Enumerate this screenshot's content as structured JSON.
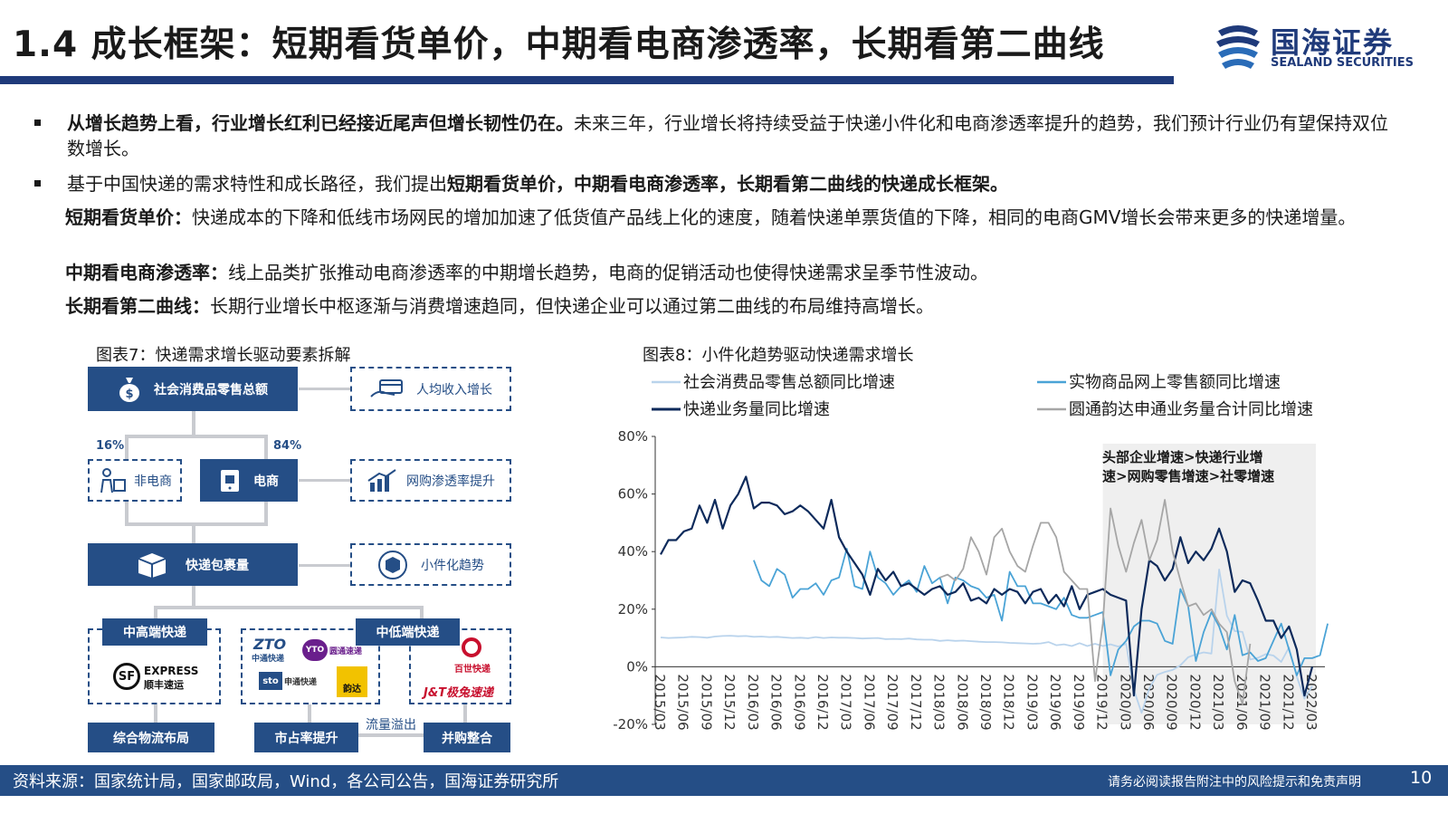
{
  "header": {
    "title": "1.4 成长框架：短期看货单价，中期看电商渗透率，长期看第二曲线",
    "logo_cn": "国海证券",
    "logo_en": "SEALAND SECURITIES"
  },
  "bullets": [
    {
      "bold": "从增长趋势上看，行业增长红利已经接近尾声但增长韧性仍在。",
      "text": "未来三年，行业增长将持续受益于快递小件化和电商渗透率提升的趋势，我们预计行业仍有望保持双位数增长。"
    },
    {
      "text": "基于中国快递的需求特性和成长路径，我们提出",
      "bold": "短期看货单价，中期看电商渗透率，长期看第二曲线的快递成长框架。"
    }
  ],
  "subpoints": [
    {
      "bold": "短期看货单价：",
      "text": "快递成本的下降和低线市场网民的增加加速了低货值产品线上化的速度，随着快递单票货值的下降，相同的电商GMV增长会带来更多的快递增量。"
    },
    {
      "bold": "中期看电商渗透率：",
      "text": "线上品类扩张推动电商渗透率的中期增长趋势，电商的促销活动也使得快递需求呈季节性波动。"
    },
    {
      "bold": "长期看第二曲线：",
      "text": "长期行业增长中枢逐渐与消费增速趋同，但快递企业可以通过第二曲线的布局维持高增长。"
    }
  ],
  "diagram": {
    "title": "图表7：快递需求增长驱动要素拆解",
    "retail_total": "社会消费品零售总额",
    "income": "人均收入增长",
    "non_ecommerce": "非电商",
    "ecommerce": "电商",
    "pct_non_ecommerce": "16%",
    "pct_ecommerce": "84%",
    "penetration": "网购渗透率提升",
    "parcel_volume": "快递包裹量",
    "small_parcel": "小件化趋势",
    "high_end": "中高端快递",
    "mid_low_end": "中低端快递",
    "integrated": "综合物流布局",
    "market_share": "市占率提升",
    "overflow": "流量溢出",
    "mna": "并购整合",
    "brands": {
      "sf": "EXPRESS",
      "sf_cn": "顺丰速运",
      "zto": "中通快递",
      "yto": "圆通速递",
      "sto": "申通快递",
      "yunda": "韵达",
      "best": "百世快递",
      "jt": "J&T极兔速递"
    }
  },
  "chart_data": {
    "title": "图表8：小件化趋势驱动快递需求增长",
    "type": "line",
    "ylim": [
      -20,
      80
    ],
    "yticks": [
      "80%",
      "60%",
      "40%",
      "20%",
      "0%",
      "-20%"
    ],
    "xticks": [
      "2015/03",
      "2015/06",
      "2015/09",
      "2015/12",
      "2016/03",
      "2016/06",
      "2016/09",
      "2016/12",
      "2017/03",
      "2017/06",
      "2017/09",
      "2017/12",
      "2018/03",
      "2018/06",
      "2018/09",
      "2018/12",
      "2019/03",
      "2019/06",
      "2019/09",
      "2019/12",
      "2020/03",
      "2020/06",
      "2020/09",
      "2020/12",
      "2021/03",
      "2021/06",
      "2021/09",
      "2021/12",
      "2022/03"
    ],
    "annotation": [
      "头部企业增速>快递行业增",
      "速>网购零售增速>社零增速"
    ],
    "shaded_range": [
      "2019/12",
      "2022/03"
    ],
    "series": [
      {
        "name": "社会消费品零售总额同比增速",
        "color": "#b9d3ec",
        "start": "2015/03",
        "values": [
          10.2,
          10.0,
          10.1,
          10.2,
          10.4,
          10.3,
          10.1,
          10.5,
          10.7,
          10.8,
          10.6,
          10.7,
          10.4,
          10.5,
          10.3,
          10.4,
          10.2,
          10.0,
          10.1,
          9.9,
          10.3,
          10.0,
          10.2,
          10.1,
          10.1,
          10.0,
          9.8,
          9.9,
          10.0,
          9.6,
          9.7,
          9.6,
          9.8,
          9.5,
          9.4,
          9.4,
          9.0,
          9.2,
          9.0,
          9.1,
          8.9,
          8.7,
          8.6,
          8.6,
          8.5,
          8.3,
          8.2,
          8.1,
          8.0,
          8.1,
          8.6,
          7.5,
          7.8,
          7.2,
          8.2,
          7.2,
          8.0,
          7.2,
          7.8,
          7.0,
          8.0,
          -8.0,
          -16.0,
          -7.5,
          -2.8,
          -1.8,
          -1.1,
          0.5,
          3.3,
          4.3,
          5.0,
          4.6,
          33.8,
          17.7,
          12.4,
          12.1,
          2.5,
          3.1,
          4.4,
          3.9,
          1.7,
          6.7,
          -3.5,
          -11.1,
          -6.7
        ]
      },
      {
        "name": "实物商品网上零售额同比增速",
        "color": "#4aa3d6",
        "start": "2016/03",
        "values": [
          37.0,
          30.0,
          28.0,
          34.0,
          32.0,
          24.0,
          27.0,
          27.0,
          29.0,
          25.0,
          30.0,
          31.0,
          41.0,
          28.0,
          27.0,
          40.0,
          31.0,
          29.0,
          25.0,
          28.0,
          30.0,
          26.0,
          35.0,
          29.0,
          31.0,
          22.0,
          31.0,
          30.0,
          28.0,
          27.0,
          24.0,
          25.0,
          16.0,
          33.0,
          28.0,
          28.0,
          22.0,
          22.0,
          21.0,
          20.0,
          24.0,
          18.0,
          17.0,
          17.0,
          18.0,
          19.0,
          -3.0,
          6.0,
          9.0,
          14.0,
          16.0,
          16.0,
          15.0,
          9.0,
          8.0,
          27.0,
          21.0,
          2.0,
          12.0,
          19.0,
          14.0,
          6.0,
          18.0,
          4.0,
          5.0,
          2.0,
          3.0,
          9.0,
          15.0,
          6.0,
          -3.0,
          3.0,
          3.0,
          4.0,
          15.0
        ]
      },
      {
        "name": "快递业务量同比增速",
        "color": "#0d2a5b",
        "start": "2015/03",
        "values": [
          39.0,
          44.0,
          44.0,
          47.0,
          48.0,
          56.0,
          50.0,
          58.0,
          48.0,
          56.0,
          60.0,
          66.0,
          55.0,
          57.0,
          57.0,
          56.0,
          53.0,
          54.0,
          56.0,
          54.0,
          51.0,
          48.0,
          58.0,
          45.0,
          40.0,
          36.0,
          32.0,
          25.0,
          34.0,
          30.0,
          33.0,
          28.0,
          29.0,
          27.0,
          25.0,
          27.0,
          28.0,
          25.0,
          26.0,
          29.0,
          23.0,
          24.0,
          22.0,
          27.0,
          25.0,
          27.0,
          26.0,
          22.0,
          26.0,
          27.0,
          22.0,
          25.0,
          21.0,
          28.0,
          20.0,
          25.0,
          26.0,
          27.0,
          25.0,
          24.0,
          23.0,
          -10.0,
          20.0,
          37.0,
          35.0,
          30.0,
          34.0,
          45.0,
          36.0,
          40.0,
          37.0,
          41.0,
          48.0,
          40.0,
          26.0,
          30.0,
          29.0,
          23.0,
          16.0,
          16.0,
          10.0,
          14.0,
          6.0,
          -10.0,
          0.0
        ]
      },
      {
        "name": "圆通韵达申通业务量合计同比增速",
        "color": "#a6a6a6",
        "start": "2018/03",
        "values": [
          31.0,
          32.0,
          30.0,
          34.0,
          45.0,
          40.0,
          32.0,
          45.0,
          48.0,
          40.0,
          35.0,
          33.0,
          42.0,
          50.0,
          50.0,
          45.0,
          33.0,
          30.0,
          27.0,
          27.0,
          -5.0,
          15.0,
          55.0,
          42.0,
          33.0,
          43.0,
          51.0,
          37.0,
          44.0,
          58.0,
          40.0,
          30.0,
          21.0,
          22.0,
          18.0,
          20.0,
          15.0,
          12.0,
          -5.0,
          -13.0,
          8.0
        ]
      }
    ]
  },
  "footer": {
    "source": "资料来源：国家统计局，国家邮政局，Wind，各公司公告，国海证券研究所",
    "disclaimer": "请务必阅读报告附注中的风险提示和免责声明",
    "page": "10"
  }
}
